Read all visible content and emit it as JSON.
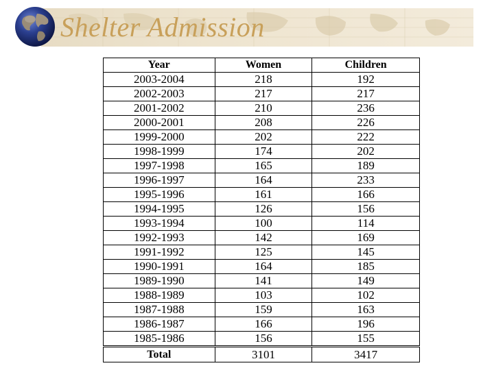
{
  "slide": {
    "title": "Shelter Admission"
  },
  "table": {
    "headers": [
      "Year",
      "Women",
      "Children"
    ],
    "rows": [
      [
        "2003-2004",
        "218",
        "192"
      ],
      [
        "2002-2003",
        "217",
        "217"
      ],
      [
        "2001-2002",
        "210",
        "236"
      ],
      [
        "2000-2001",
        "208",
        "226"
      ],
      [
        "1999-2000",
        "202",
        "222"
      ],
      [
        "1998-1999",
        "174",
        "202"
      ],
      [
        "1997-1998",
        "165",
        "189"
      ],
      [
        "1996-1997",
        "164",
        "233"
      ],
      [
        "1995-1996",
        "161",
        "166"
      ],
      [
        "1994-1995",
        "126",
        "156"
      ],
      [
        "1993-1994",
        "100",
        "114"
      ],
      [
        "1992-1993",
        "142",
        "169"
      ],
      [
        "1991-1992",
        "125",
        "145"
      ],
      [
        "1990-1991",
        "164",
        "185"
      ],
      [
        "1989-1990",
        "141",
        "149"
      ],
      [
        "1988-1989",
        "103",
        "102"
      ],
      [
        "1987-1988",
        "159",
        "163"
      ],
      [
        "1986-1987",
        "166",
        "196"
      ],
      [
        "1985-1986",
        "156",
        "155"
      ]
    ],
    "total": [
      "Total",
      "3101",
      "3417"
    ]
  },
  "colors": {
    "title": "#c8a05a",
    "banner": "#ece2cc",
    "globe_ocean": "#2b3f8f",
    "globe_land": "#9a8c78"
  },
  "icons": [
    "globe-icon",
    "world-map-banner"
  ]
}
